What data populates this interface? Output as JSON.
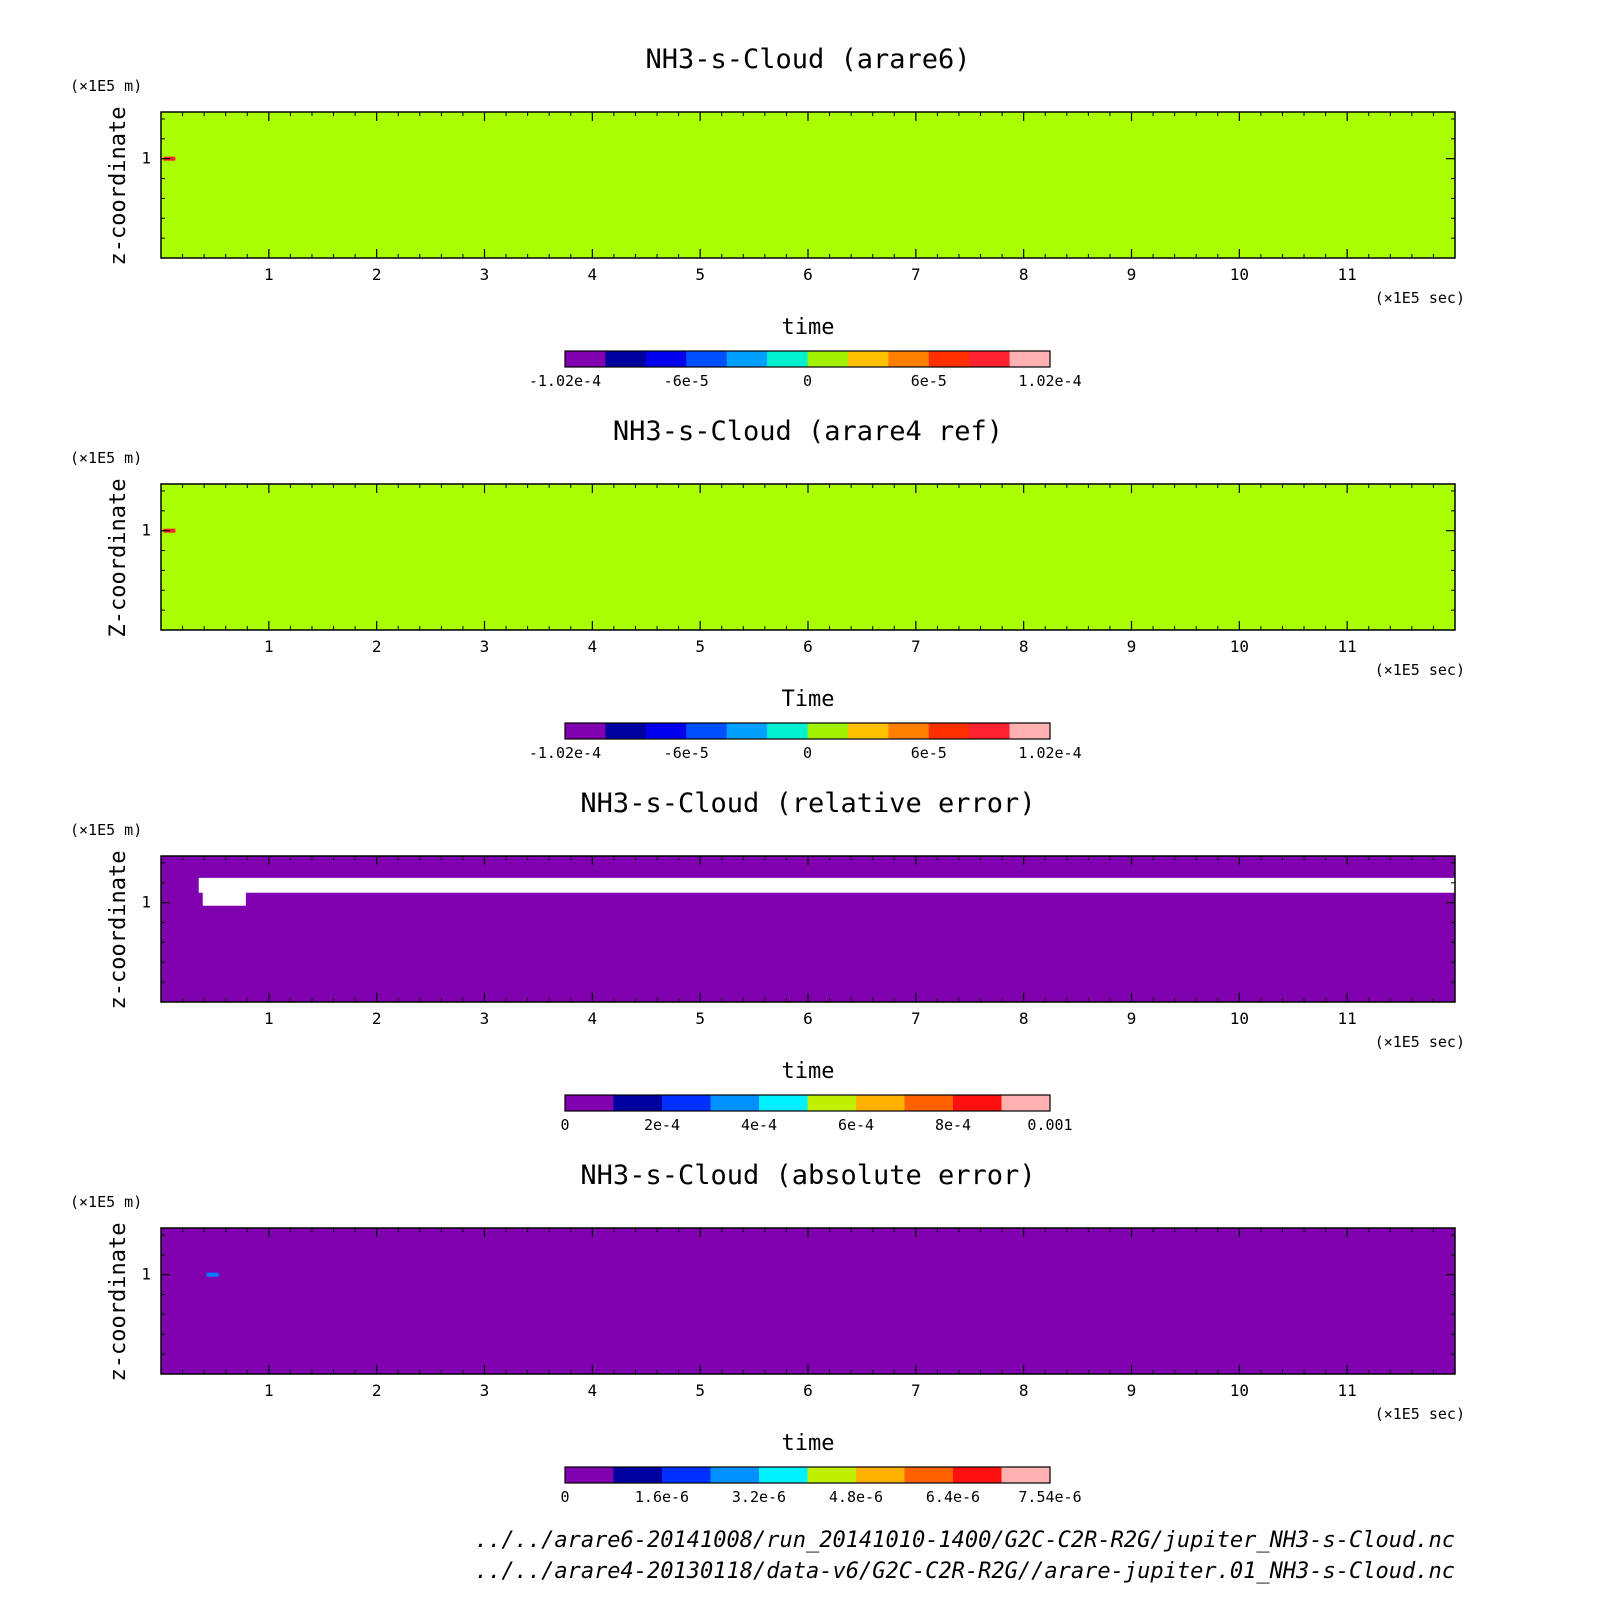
{
  "chart_data": [
    {
      "type": "heatmap",
      "title": "NH3-s-Cloud (arare6)",
      "xlabel": "time",
      "ylabel": "z-coordinate",
      "x_unit": "(×1E5 sec)",
      "y_unit": "(×1E5 m)",
      "xlim": [
        0,
        12
      ],
      "ylim": [
        0,
        1.47
      ],
      "x_ticks": [
        "1",
        "2",
        "3",
        "4",
        "5",
        "6",
        "7",
        "8",
        "9",
        "10",
        "11"
      ],
      "y_ticks": [
        "1"
      ],
      "field_color": "#aaff00",
      "colorbar": {
        "colors": [
          "#8000b0",
          "#0000a0",
          "#0000ee",
          "#0050ff",
          "#00a0ff",
          "#00f0d0",
          "#a0f000",
          "#ffc000",
          "#ff8000",
          "#ff3000",
          "#ff2030",
          "#ffb0b0"
        ],
        "ticks": [
          "-1.02e-4",
          "-6e-5",
          "0",
          "6e-5",
          "1.02e-4"
        ]
      },
      "features": [
        {
          "x": 0.05,
          "z": 1.0,
          "color": "#ff2030"
        }
      ]
    },
    {
      "type": "heatmap",
      "title": "NH3-s-Cloud (arare4 ref)",
      "xlabel": "Time",
      "ylabel": "Z-coordinate",
      "x_unit": "(×1E5 sec)",
      "y_unit": "(×1E5 m)",
      "xlim": [
        0,
        12
      ],
      "ylim": [
        0,
        1.47
      ],
      "x_ticks": [
        "1",
        "2",
        "3",
        "4",
        "5",
        "6",
        "7",
        "8",
        "9",
        "10",
        "11"
      ],
      "y_ticks": [
        "1"
      ],
      "field_color": "#aaff00",
      "colorbar": {
        "colors": [
          "#8000b0",
          "#0000a0",
          "#0000ee",
          "#0050ff",
          "#00a0ff",
          "#00f0d0",
          "#a0f000",
          "#ffc000",
          "#ff8000",
          "#ff3000",
          "#ff2030",
          "#ffb0b0"
        ],
        "ticks": [
          "-1.02e-4",
          "-6e-5",
          "0",
          "6e-5",
          "1.02e-4"
        ]
      },
      "features": [
        {
          "x": 0.05,
          "z": 1.0,
          "color": "#ff2030"
        }
      ]
    },
    {
      "type": "heatmap",
      "title": "NH3-s-Cloud (relative error)",
      "xlabel": "time",
      "ylabel": "z-coordinate",
      "x_unit": "(×1E5 sec)",
      "y_unit": "(×1E5 m)",
      "xlim": [
        0,
        12
      ],
      "ylim": [
        0,
        1.47
      ],
      "x_ticks": [
        "1",
        "2",
        "3",
        "4",
        "5",
        "6",
        "7",
        "8",
        "9",
        "10",
        "11"
      ],
      "y_ticks": [
        "1"
      ],
      "field_color": "#8000b0",
      "missing_band": {
        "x_start": 0.35,
        "x_end": 12,
        "z_low": 1.1,
        "z_high": 1.25,
        "color": "#ffffff"
      },
      "colorbar": {
        "colors": [
          "#8000b0",
          "#0000a0",
          "#0030ff",
          "#0090ff",
          "#00f0ff",
          "#c0f000",
          "#ffb000",
          "#ff6000",
          "#ff1010",
          "#ffb0b0"
        ],
        "ticks": [
          "0",
          "2e-4",
          "4e-4",
          "6e-4",
          "8e-4",
          "0.001"
        ]
      }
    },
    {
      "type": "heatmap",
      "title": "NH3-s-Cloud (absolute error)",
      "xlabel": "time",
      "ylabel": "z-coordinate",
      "x_unit": "(×1E5 sec)",
      "y_unit": "(×1E5 m)",
      "xlim": [
        0,
        12
      ],
      "ylim": [
        0,
        1.47
      ],
      "x_ticks": [
        "1",
        "2",
        "3",
        "4",
        "5",
        "6",
        "7",
        "8",
        "9",
        "10",
        "11"
      ],
      "y_ticks": [
        "1"
      ],
      "field_color": "#8000b0",
      "features": [
        {
          "x": 0.45,
          "z": 1.0,
          "color": "#0080ff"
        }
      ],
      "colorbar": {
        "colors": [
          "#8000b0",
          "#0000a0",
          "#0030ff",
          "#0090ff",
          "#00f0ff",
          "#c0f000",
          "#ffb000",
          "#ff6000",
          "#ff1010",
          "#ffb0b0"
        ],
        "ticks": [
          "0",
          "1.6e-6",
          "3.2e-6",
          "4.8e-6",
          "6.4e-6",
          "7.54e-6"
        ]
      }
    }
  ],
  "footer": {
    "line1": "../../arare6-20141008/run_20141010-1400/G2C-C2R-R2G/jupiter_NH3-s-Cloud.nc",
    "line2": "../../arare4-20130118/data-v6/G2C-C2R-R2G//arare-jupiter.01_NH3-s-Cloud.nc"
  }
}
